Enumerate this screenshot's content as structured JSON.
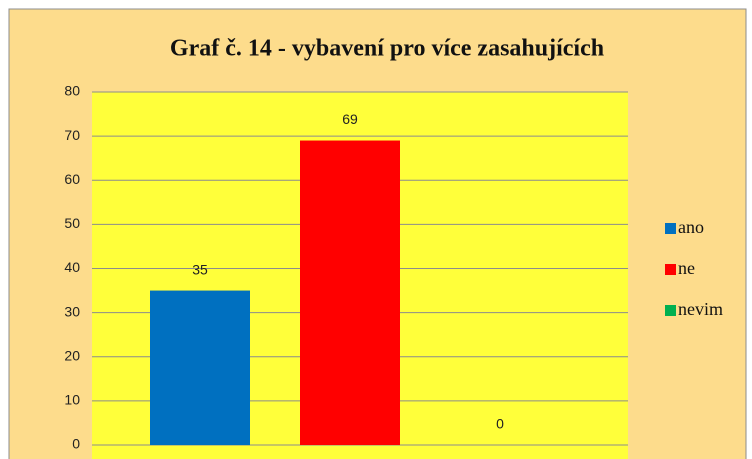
{
  "chart_data": {
    "type": "bar",
    "title": "Graf č. 14 - vybavení pro více zasahujících",
    "categories": [
      "ano",
      "ne",
      "nevim"
    ],
    "values": [
      35,
      69,
      0
    ],
    "colors": [
      "#0070c0",
      "#ff0000",
      "#00b050"
    ],
    "ylim": [
      0,
      80
    ],
    "yticks": [
      0,
      10,
      20,
      30,
      40,
      50,
      60,
      70,
      80
    ],
    "grid": true,
    "legend": "right"
  }
}
